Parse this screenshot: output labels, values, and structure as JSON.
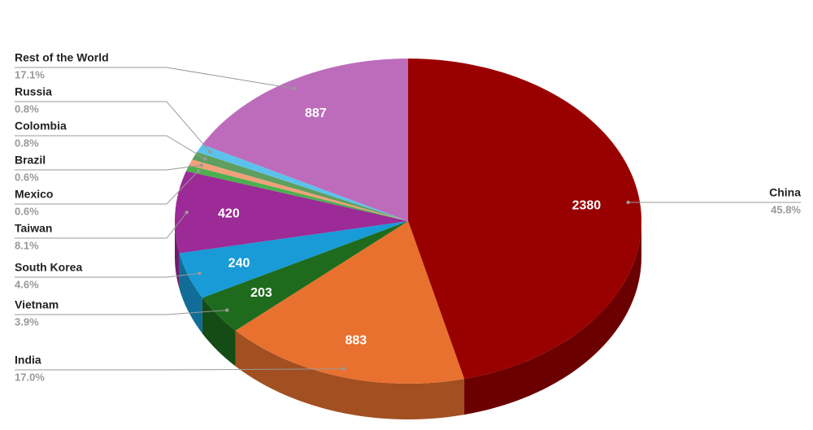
{
  "chart_data": {
    "type": "pie3d",
    "categories": [
      "China",
      "India",
      "Vietnam",
      "South Korea",
      "Taiwan",
      "Mexico",
      "Brazil",
      "Colombia",
      "Russia",
      "Rest of the World"
    ],
    "values": [
      2380,
      883,
      203,
      240,
      420,
      31,
      31,
      42,
      42,
      887
    ],
    "percent_labels": [
      "45.8%",
      "17.0%",
      "3.9%",
      "4.6%",
      "8.1%",
      "0.6%",
      "0.6%",
      "0.8%",
      "0.8%",
      "17.1%"
    ],
    "colors": [
      "#990000",
      "#e8712f",
      "#1e6b1e",
      "#189bd7",
      "#9c2a97",
      "#4caf50",
      "#f2a07a",
      "#5e9e5e",
      "#5cc2ec",
      "#bd6cbc"
    ]
  }
}
